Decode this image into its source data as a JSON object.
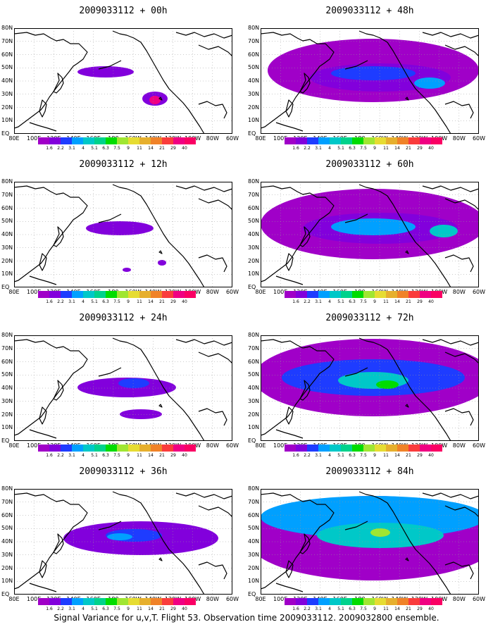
{
  "palette": [
    "#a000c8",
    "#8200dc",
    "#1e3cff",
    "#00a0ff",
    "#00c8c8",
    "#00d28c",
    "#00dc00",
    "#a0e632",
    "#e6dc32",
    "#e6af2d",
    "#f08228",
    "#fa3c3c",
    "#f00082"
  ],
  "legend_labels": [
    "1.6",
    "2.2",
    "3.1",
    "4",
    "5.1",
    "6.3",
    "7.5",
    "9",
    "11",
    "14",
    "21",
    "29",
    "40"
  ],
  "lat_labels": [
    "80N",
    "70N",
    "60N",
    "50N",
    "40N",
    "30N",
    "20N",
    "10N",
    "EQ"
  ],
  "lon_labels": [
    "80E",
    "100E",
    "120E",
    "140E",
    "160E",
    "180",
    "160W",
    "140W",
    "120W",
    "100W",
    "80W",
    "60W"
  ],
  "panels": [
    {
      "title": "2009033112 + 00h",
      "level": 0
    },
    {
      "title": "2009033112 + 48h",
      "level": 4
    },
    {
      "title": "2009033112 + 12h",
      "level": 1
    },
    {
      "title": "2009033112 + 60h",
      "level": 5
    },
    {
      "title": "2009033112 + 24h",
      "level": 2
    },
    {
      "title": "2009033112 + 72h",
      "level": 6
    },
    {
      "title": "2009033112 + 36h",
      "level": 3
    },
    {
      "title": "2009033112 + 84h",
      "level": 7
    }
  ],
  "footer": "Signal Variance for u,v,T. Flight 53. Observation time 2009033112. 2009032800 ensemble."
}
